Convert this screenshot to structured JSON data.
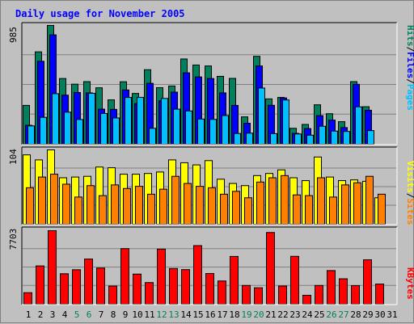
{
  "title": "Daily usage for November 2005",
  "colors": {
    "hits": "#00805c",
    "files": "#0000ff",
    "pages": "#00c0ff",
    "visits": "#ffff00",
    "sites": "#ff8000",
    "kbytes": "#ff0000",
    "title": "#0000ff",
    "weekend": "#00805c",
    "weekday": "#000000"
  },
  "legend": {
    "top": [
      "Hits",
      "/",
      "Files",
      "/",
      "Pages"
    ],
    "middle": [
      "Visits",
      "/",
      "Sites"
    ],
    "bottom": [
      "KBytes"
    ]
  },
  "chart_data": [
    {
      "type": "bar",
      "panel": "hits-files-pages",
      "ymax_label": "985",
      "ylim": [
        0,
        985
      ],
      "categories": [
        "1",
        "2",
        "3",
        "4",
        "5",
        "6",
        "7",
        "8",
        "9",
        "10",
        "11",
        "12",
        "13",
        "14",
        "15",
        "16",
        "17",
        "18",
        "19",
        "20",
        "21",
        "22",
        "23",
        "24",
        "25",
        "26",
        "27",
        "28",
        "29",
        "30",
        "31"
      ],
      "series": [
        {
          "name": "Hits",
          "values": [
            322,
            766,
            985,
            545,
            498,
            519,
            468,
            368,
            518,
            421,
            618,
            469,
            483,
            707,
            657,
            649,
            563,
            546,
            227,
            729,
            376,
            388,
            132,
            164,
            327,
            253,
            187,
            519,
            311,
            0,
            0
          ]
        },
        {
          "name": "Files",
          "values": [
            157,
            688,
            907,
            407,
            429,
            426,
            291,
            289,
            450,
            337,
            505,
            361,
            432,
            592,
            558,
            545,
            426,
            322,
            174,
            649,
            323,
            384,
            90,
            130,
            237,
            200,
            138,
            497,
            282,
            0,
            0
          ]
        },
        {
          "name": "Pages",
          "values": [
            152,
            223,
            419,
            266,
            205,
            422,
            255,
            218,
            388,
            389,
            132,
            380,
            291,
            276,
            209,
            206,
            238,
            89,
            92,
            466,
            88,
            367,
            85,
            75,
            149,
            109,
            106,
            310,
            113,
            0,
            0
          ]
        }
      ]
    },
    {
      "type": "bar",
      "panel": "visits-sites",
      "ymax_label": "104",
      "ylim": [
        0,
        104
      ],
      "categories": [
        "1",
        "2",
        "3",
        "4",
        "5",
        "6",
        "7",
        "8",
        "9",
        "10",
        "11",
        "12",
        "13",
        "14",
        "15",
        "16",
        "17",
        "18",
        "19",
        "20",
        "21",
        "22",
        "23",
        "24",
        "25",
        "26",
        "27",
        "28",
        "29",
        "30",
        "31"
      ],
      "series": [
        {
          "name": "Visits",
          "values": [
            97,
            90,
            104,
            65,
            66,
            67,
            80,
            79,
            70,
            70,
            71,
            73,
            90,
            86,
            83,
            89,
            63,
            57,
            54,
            68,
            71,
            76,
            65,
            61,
            94,
            66,
            61,
            62,
            60,
            37,
            0
          ]
        },
        {
          "name": "Sites",
          "values": [
            51,
            66,
            70,
            56,
            38,
            54,
            40,
            55,
            50,
            53,
            42,
            49,
            67,
            57,
            53,
            51,
            42,
            46,
            37,
            59,
            65,
            68,
            41,
            40,
            65,
            38,
            55,
            58,
            67,
            42,
            0
          ]
        }
      ]
    },
    {
      "type": "bar",
      "panel": "kbytes",
      "ymax_label": "7703",
      "ylim": [
        0,
        7703
      ],
      "categories": [
        "1",
        "2",
        "3",
        "4",
        "5",
        "6",
        "7",
        "8",
        "9",
        "10",
        "11",
        "12",
        "13",
        "14",
        "15",
        "16",
        "17",
        "18",
        "19",
        "20",
        "21",
        "22",
        "23",
        "24",
        "25",
        "26",
        "27",
        "28",
        "29",
        "30",
        "31"
      ],
      "series": [
        {
          "name": "KBytes",
          "values": [
            1207,
            4011,
            7703,
            3191,
            3610,
            4732,
            3787,
            1899,
            5821,
            3155,
            2266,
            5773,
            3738,
            3623,
            6138,
            3217,
            2432,
            5003,
            1962,
            1720,
            7511,
            1905,
            5014,
            935,
            1962,
            3524,
            2664,
            1950,
            4654,
            2112,
            0
          ]
        }
      ]
    }
  ],
  "weekend_days": [
    "5",
    "6",
    "12",
    "13",
    "19",
    "20",
    "26",
    "27"
  ]
}
